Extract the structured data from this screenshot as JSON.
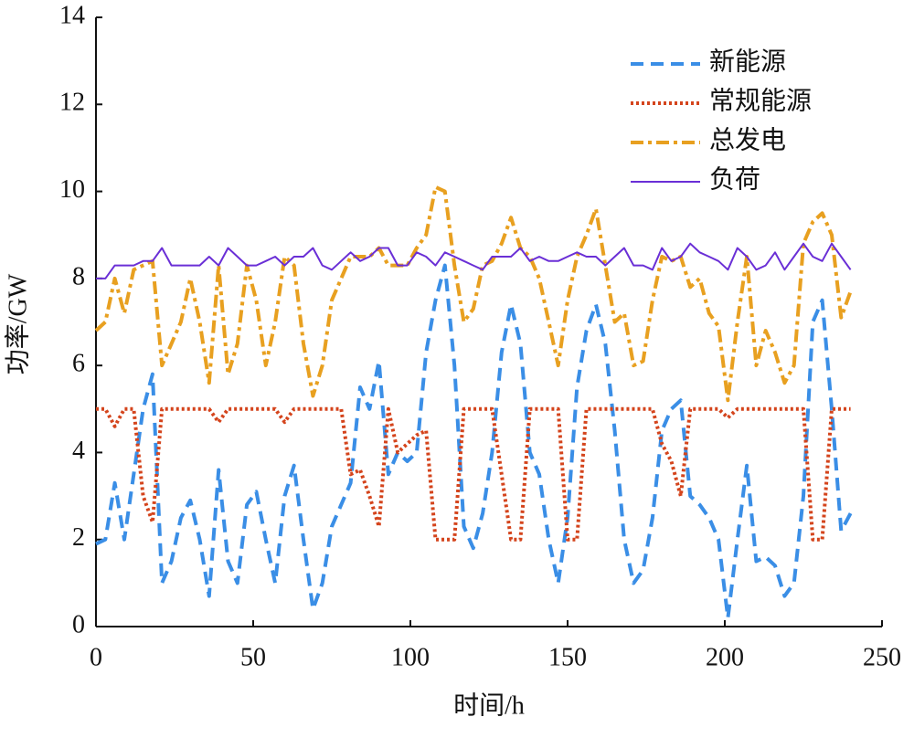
{
  "chart_data": {
    "type": "line",
    "xlabel": "时间/h",
    "ylabel": "功率/GW",
    "x": [
      0,
      3,
      6,
      9,
      12,
      15,
      18,
      21,
      24,
      27,
      30,
      33,
      36,
      39,
      42,
      45,
      48,
      51,
      54,
      57,
      60,
      63,
      66,
      69,
      72,
      75,
      78,
      81,
      84,
      87,
      90,
      93,
      96,
      99,
      102,
      105,
      108,
      111,
      114,
      117,
      120,
      123,
      126,
      129,
      132,
      135,
      138,
      141,
      144,
      147,
      150,
      153,
      156,
      159,
      162,
      165,
      168,
      171,
      174,
      177,
      180,
      183,
      186,
      189,
      192,
      195,
      198,
      201,
      204,
      207,
      210,
      213,
      216,
      219,
      222,
      225,
      228,
      231,
      234,
      237,
      240
    ],
    "series": [
      {
        "name": "新能源",
        "color": "#3a8ee6",
        "style": "dashed",
        "values": [
          1.9,
          2.0,
          3.3,
          2.0,
          3.5,
          5.0,
          5.8,
          1.0,
          1.5,
          2.5,
          2.9,
          2.0,
          0.7,
          3.6,
          1.5,
          1.0,
          2.8,
          3.1,
          2.0,
          1.0,
          3.0,
          3.7,
          2.0,
          0.4,
          1.0,
          2.3,
          2.8,
          3.3,
          5.5,
          5.0,
          6.1,
          3.5,
          4.0,
          3.8,
          4.0,
          6.3,
          7.5,
          8.3,
          6.0,
          2.3,
          1.8,
          2.6,
          4.0,
          6.3,
          7.4,
          6.5,
          4.0,
          3.5,
          2.0,
          1.0,
          2.5,
          5.5,
          6.8,
          7.4,
          6.5,
          4.5,
          2.0,
          1.0,
          1.3,
          2.5,
          4.5,
          5.0,
          5.2,
          3.0,
          2.8,
          2.5,
          2.0,
          0.2,
          2.0,
          3.7,
          1.5,
          1.6,
          1.4,
          0.7,
          1.0,
          3.0,
          7.0,
          7.5,
          5.0,
          2.2,
          2.6
        ]
      },
      {
        "name": "常规能源",
        "color": "#d4441c",
        "style": "dotted",
        "values": [
          5,
          5,
          4.6,
          5,
          5,
          3.0,
          2.4,
          5,
          5,
          5,
          5,
          5,
          5,
          4.7,
          5,
          5,
          5,
          5,
          5,
          5,
          4.7,
          5,
          5,
          5,
          5,
          5,
          5,
          3.5,
          3.6,
          3.0,
          2.3,
          5,
          4.0,
          4.2,
          4.4,
          4.5,
          2.0,
          2.0,
          2.0,
          5,
          5,
          5,
          5,
          3.5,
          2.0,
          2.0,
          5,
          5,
          5,
          5,
          2.0,
          2.0,
          5,
          5,
          5,
          5,
          5,
          5,
          5,
          5,
          4.2,
          3.8,
          3.0,
          5,
          5,
          5,
          5,
          4.8,
          5,
          5,
          5,
          5,
          5,
          5,
          5,
          5,
          2.0,
          2.0,
          5,
          5,
          5
        ]
      },
      {
        "name": "总发电",
        "color": "#e8a020",
        "style": "dashdot",
        "values": [
          6.8,
          7.0,
          8.0,
          7.2,
          8.2,
          8.3,
          8.4,
          6.0,
          6.5,
          7.0,
          8.0,
          7.0,
          5.6,
          8.3,
          5.8,
          6.5,
          8.3,
          7.5,
          6.0,
          7.0,
          8.5,
          8.3,
          6.5,
          5.3,
          6.0,
          7.5,
          8.0,
          8.5,
          8.5,
          8.5,
          8.7,
          8.3,
          8.3,
          8.3,
          8.7,
          9.0,
          10.1,
          10.0,
          8.3,
          7.0,
          7.3,
          8.3,
          8.4,
          8.8,
          9.4,
          8.7,
          8.5,
          8.0,
          7.0,
          6.0,
          7.5,
          8.5,
          9.0,
          9.6,
          8.3,
          7.0,
          7.2,
          6.0,
          6.1,
          7.5,
          8.5,
          8.4,
          8.5,
          7.8,
          8.0,
          7.2,
          6.9,
          5.2,
          7.0,
          8.5,
          6.0,
          6.8,
          6.3,
          5.6,
          6.0,
          8.8,
          9.3,
          9.5,
          9.0,
          7.1,
          7.7
        ]
      },
      {
        "name": "负荷",
        "color": "#6a2fd6",
        "style": "solid",
        "values": [
          8.0,
          8.0,
          8.3,
          8.3,
          8.3,
          8.4,
          8.4,
          8.7,
          8.3,
          8.3,
          8.3,
          8.3,
          8.5,
          8.3,
          8.7,
          8.5,
          8.3,
          8.3,
          8.4,
          8.5,
          8.3,
          8.5,
          8.5,
          8.7,
          8.3,
          8.2,
          8.4,
          8.6,
          8.4,
          8.5,
          8.7,
          8.7,
          8.3,
          8.3,
          8.6,
          8.5,
          8.3,
          8.6,
          8.5,
          8.4,
          8.3,
          8.2,
          8.5,
          8.5,
          8.5,
          8.7,
          8.4,
          8.5,
          8.4,
          8.4,
          8.5,
          8.6,
          8.5,
          8.5,
          8.3,
          8.5,
          8.7,
          8.3,
          8.3,
          8.2,
          8.7,
          8.4,
          8.5,
          8.8,
          8.6,
          8.5,
          8.4,
          8.2,
          8.7,
          8.5,
          8.2,
          8.3,
          8.6,
          8.2,
          8.5,
          8.8,
          8.5,
          8.4,
          8.8,
          8.5,
          8.2
        ]
      }
    ],
    "xlim": [
      0,
      250
    ],
    "xticks": [
      0,
      50,
      100,
      150,
      200,
      250
    ],
    "ylim": [
      0,
      14
    ],
    "yticks": [
      0,
      2,
      4,
      6,
      8,
      10,
      12,
      14
    ],
    "legend": "upper-right"
  }
}
